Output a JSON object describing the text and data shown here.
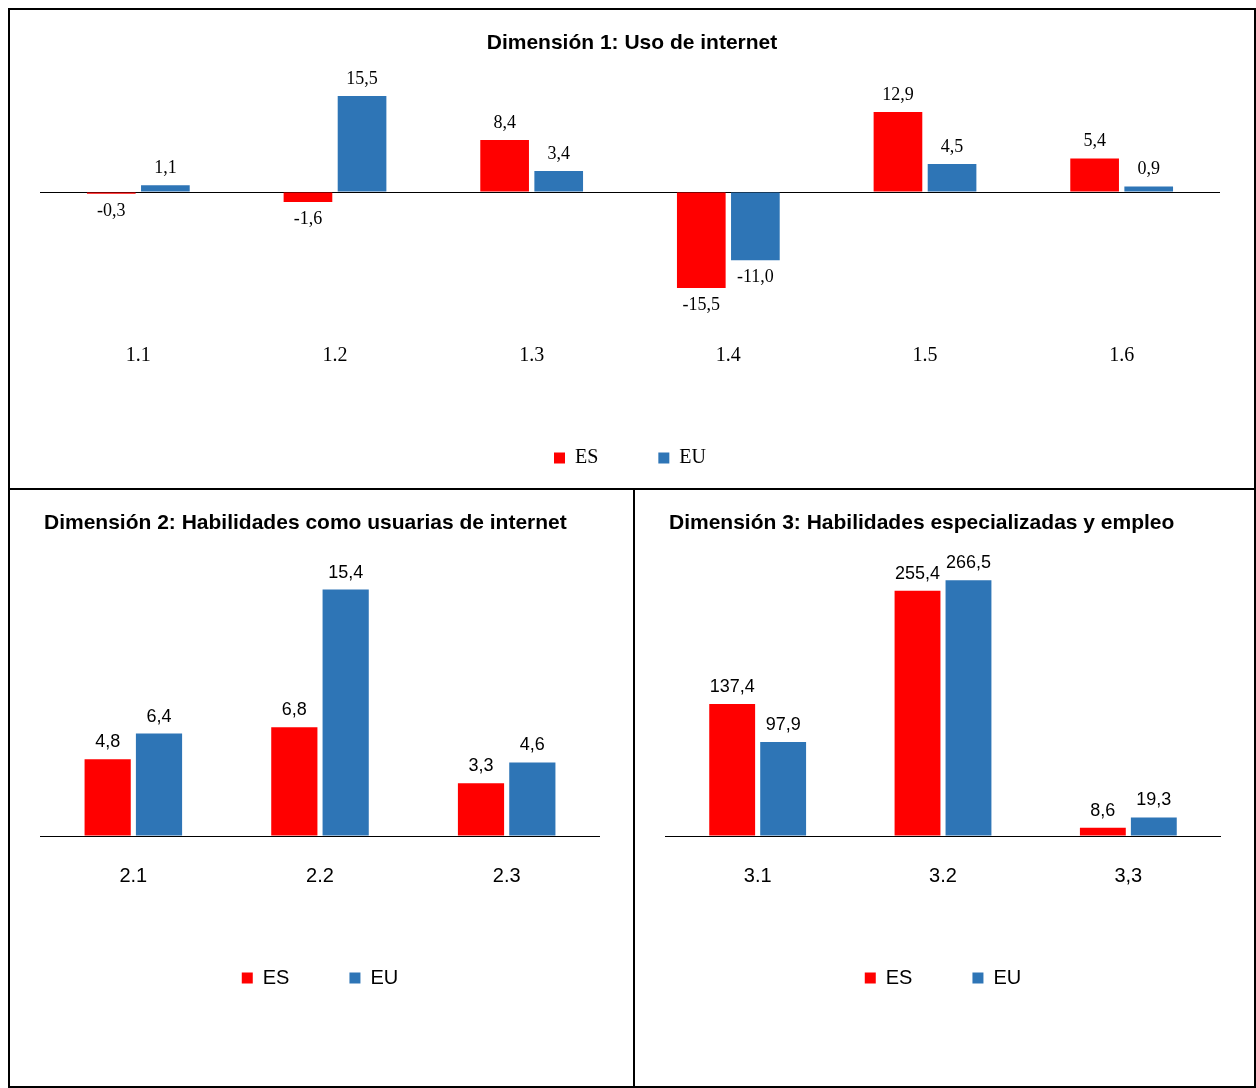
{
  "chart_data": [
    {
      "type": "bar",
      "title": "Dimensión 1: Uso de internet",
      "categories": [
        "1.1",
        "1.2",
        "1.3",
        "1.4",
        "1.5",
        "1.6"
      ],
      "legend": "bottom",
      "series": [
        {
          "name": "ES",
          "color": "#ff0000",
          "values": [
            -0.3,
            -1.6,
            8.4,
            -15.5,
            12.9,
            5.4
          ],
          "value_labels": [
            "-0,3",
            "-1,6",
            "8,4",
            "-15,5",
            "12,9",
            "5,4"
          ]
        },
        {
          "name": "EU",
          "color": "#2e75b6",
          "values": [
            1.1,
            15.5,
            3.4,
            -11.0,
            4.5,
            0.9
          ],
          "value_labels": [
            "1,1",
            "15,5",
            "3,4",
            "-11,0",
            "4,5",
            "0,9"
          ]
        }
      ]
    },
    {
      "type": "bar",
      "title": "Dimensión 2: Habilidades como usuarias de internet",
      "categories": [
        "2.1",
        "2.2",
        "2.3"
      ],
      "legend": "bottom",
      "series": [
        {
          "name": "ES",
          "color": "#ff0000",
          "values": [
            4.8,
            6.8,
            3.3
          ],
          "value_labels": [
            "4,8",
            "6,8",
            "3,3"
          ]
        },
        {
          "name": "EU",
          "color": "#2e75b6",
          "values": [
            6.4,
            15.4,
            4.6
          ],
          "value_labels": [
            "6,4",
            "15,4",
            "4,6"
          ]
        }
      ]
    },
    {
      "type": "bar",
      "title": "Dimensión 3: Habilidades especializadas y empleo",
      "categories": [
        "3.1",
        "3.2",
        "3,3"
      ],
      "legend": "bottom",
      "series": [
        {
          "name": "ES",
          "color": "#ff0000",
          "values": [
            137.4,
            255.4,
            8.6
          ],
          "value_labels": [
            "137,4",
            "255,4",
            "8,6"
          ]
        },
        {
          "name": "EU",
          "color": "#2e75b6",
          "values": [
            97.9,
            266.5,
            19.3
          ],
          "value_labels": [
            "97,9",
            "266,5",
            "19,3"
          ]
        }
      ]
    }
  ]
}
